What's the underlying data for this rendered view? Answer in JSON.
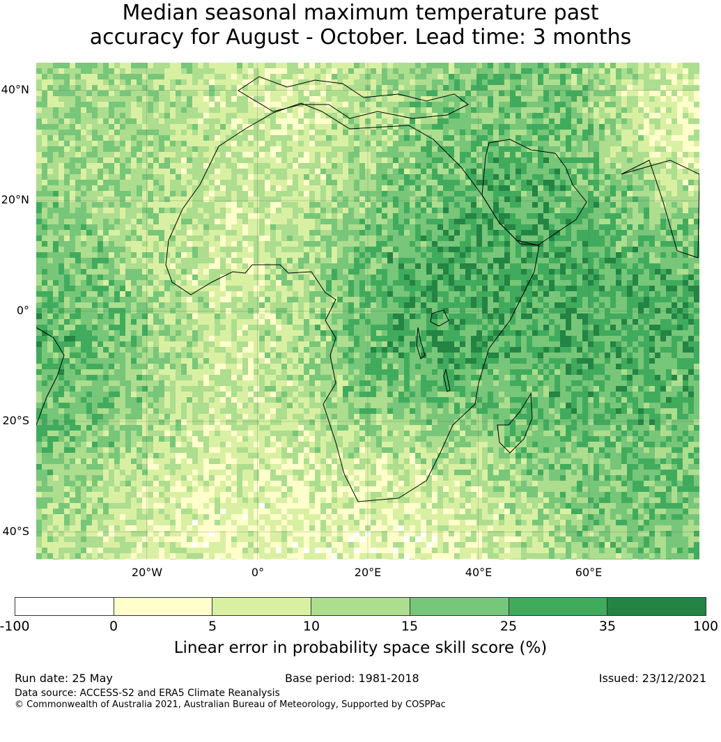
{
  "title": {
    "line1": "Median seasonal maximum temperature past",
    "line2": "accuracy for August - October. Lead time: 3 months"
  },
  "map": {
    "lat_ticks": [
      "40°N",
      "20°N",
      "0°",
      "20°S",
      "40°S"
    ],
    "lon_ticks": [
      "20°W",
      "0°",
      "20°E",
      "40°E",
      "60°E"
    ],
    "lat_range": [
      -45,
      45
    ],
    "lon_range": [
      -40,
      80
    ],
    "gridlines": true
  },
  "colorbar": {
    "ticks": [
      "-100",
      "0",
      "5",
      "10",
      "15",
      "25",
      "35",
      "100"
    ],
    "colors": [
      "#ffffff",
      "#ffffcc",
      "#d9f0a3",
      "#addd8e",
      "#78c679",
      "#41ab5d",
      "#238443"
    ],
    "label": "Linear error in probability space skill score (%)"
  },
  "footer": {
    "run_date": "Run date: 25 May",
    "base_period": "Base period: 1981-2018",
    "issued": "Issued: 23/12/2021",
    "data_source": "Data source: ACCESS-S2 and ERA5 Climate Reanalysis",
    "copyright": "© Commonwealth of Australia 2021, Australian Bureau of Meteorology, Supported by COSPPac"
  }
}
